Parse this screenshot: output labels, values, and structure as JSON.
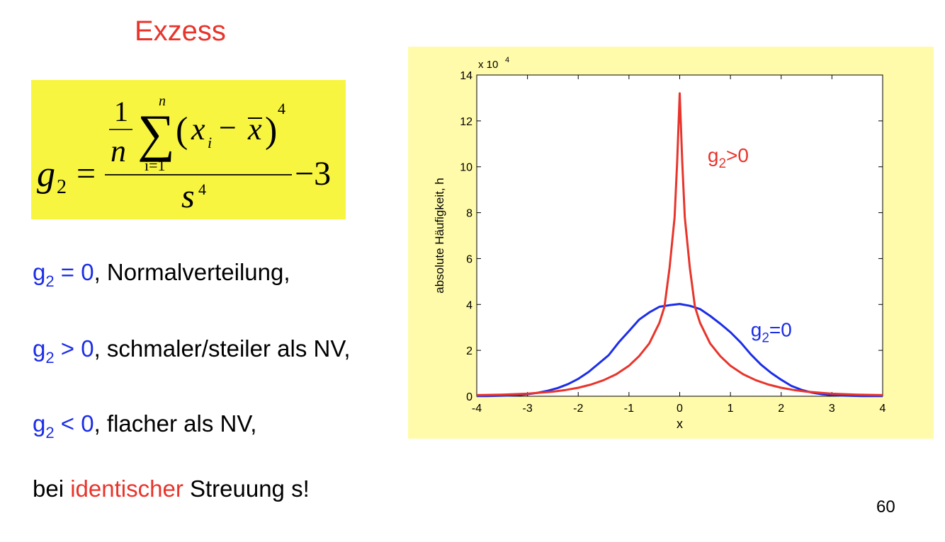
{
  "slide": {
    "title": "Exzess",
    "page_number": "60",
    "formula": {
      "lhs": "g",
      "lhs_sub": "2",
      "equals": "=",
      "one": "1",
      "n": "n",
      "sum": "∑",
      "sum_top": "n",
      "sum_bottom": "i=1",
      "paren_open": "(",
      "x": "x",
      "x_sub": "i",
      "minus": "−",
      "xbar": "x",
      "paren_close": ")",
      "power": "4",
      "denominator": "s",
      "denominator_power": "4",
      "minus3": "−3"
    },
    "lines": [
      {
        "g": "g",
        "sub": "2",
        "rel": " = 0",
        "rest": ", Normalverteilung,"
      },
      {
        "g": "g",
        "sub": "2",
        "rel": " > 0",
        "rest": ", schmaler/steiler als NV,"
      },
      {
        "g": "g",
        "sub": "2",
        "rel": " < 0",
        "rest": ", flacher als NV,"
      }
    ],
    "footer": {
      "pre": "bei ",
      "highlight": "identischer",
      "post": " Streuung s!"
    }
  },
  "chart_data": {
    "type": "line",
    "xlabel": "x",
    "ylabel": "absolute Häufigkeit, h",
    "y_multiplier": "x 10",
    "y_multiplier_exp": "4",
    "xlim": [
      -4,
      4
    ],
    "ylim": [
      0,
      14
    ],
    "xticks": [
      -4,
      -3,
      -2,
      -1,
      0,
      1,
      2,
      3,
      4
    ],
    "yticks": [
      0,
      2,
      4,
      6,
      8,
      10,
      12,
      14
    ],
    "grid": false,
    "colors": {
      "normal": "#1b2de8",
      "peaked": "#e8342b",
      "axis": "#000000"
    },
    "annotations": [
      {
        "text": "g",
        "sub": "2",
        "rest": ">0",
        "series": "g2>0"
      },
      {
        "text": "g",
        "sub": "2",
        "rest": "=0",
        "series": "g2=0"
      }
    ],
    "series": [
      {
        "name": "g2=0",
        "color": "#1b2de8",
        "x": [
          -4,
          -3.8,
          -3.6,
          -3.4,
          -3.2,
          -3,
          -2.8,
          -2.6,
          -2.4,
          -2.2,
          -2,
          -1.8,
          -1.6,
          -1.4,
          -1.2,
          -1,
          -0.8,
          -0.6,
          -0.4,
          -0.2,
          0,
          0.2,
          0.4,
          0.6,
          0.8,
          1,
          1.2,
          1.4,
          1.6,
          1.8,
          2,
          2.2,
          2.4,
          2.6,
          2.8,
          3,
          3.2,
          3.4,
          3.6,
          3.8,
          4
        ],
        "y": [
          0.01,
          0.01,
          0.02,
          0.03,
          0.05,
          0.09,
          0.15,
          0.24,
          0.36,
          0.53,
          0.76,
          1.05,
          1.42,
          1.79,
          2.35,
          2.84,
          3.34,
          3.65,
          3.9,
          3.97,
          4.02,
          3.94,
          3.8,
          3.5,
          3.16,
          2.79,
          2.35,
          1.83,
          1.38,
          1.02,
          0.72,
          0.45,
          0.28,
          0.16,
          0.09,
          0.05,
          0.03,
          0.02,
          0.01,
          0.01,
          0.01
        ]
      },
      {
        "name": "g2>0",
        "color": "#e8342b",
        "x": [
          -4,
          -3.5,
          -3,
          -2.5,
          -2.25,
          -2,
          -1.75,
          -1.5,
          -1.25,
          -1,
          -0.8,
          -0.6,
          -0.5,
          -0.4,
          -0.3,
          -0.2,
          -0.1,
          -0.05,
          0,
          0.05,
          0.1,
          0.2,
          0.3,
          0.4,
          0.5,
          0.6,
          0.8,
          1,
          1.25,
          1.5,
          1.75,
          2,
          2.25,
          2.5,
          3,
          3.5,
          4
        ],
        "y": [
          0.05,
          0.07,
          0.11,
          0.2,
          0.27,
          0.37,
          0.51,
          0.7,
          0.96,
          1.33,
          1.75,
          2.3,
          2.75,
          3.2,
          3.9,
          5.6,
          7.8,
          10.2,
          13.2,
          10.2,
          7.8,
          5.6,
          3.9,
          3.2,
          2.75,
          2.3,
          1.75,
          1.33,
          0.96,
          0.7,
          0.51,
          0.37,
          0.27,
          0.2,
          0.11,
          0.07,
          0.05
        ]
      }
    ]
  }
}
